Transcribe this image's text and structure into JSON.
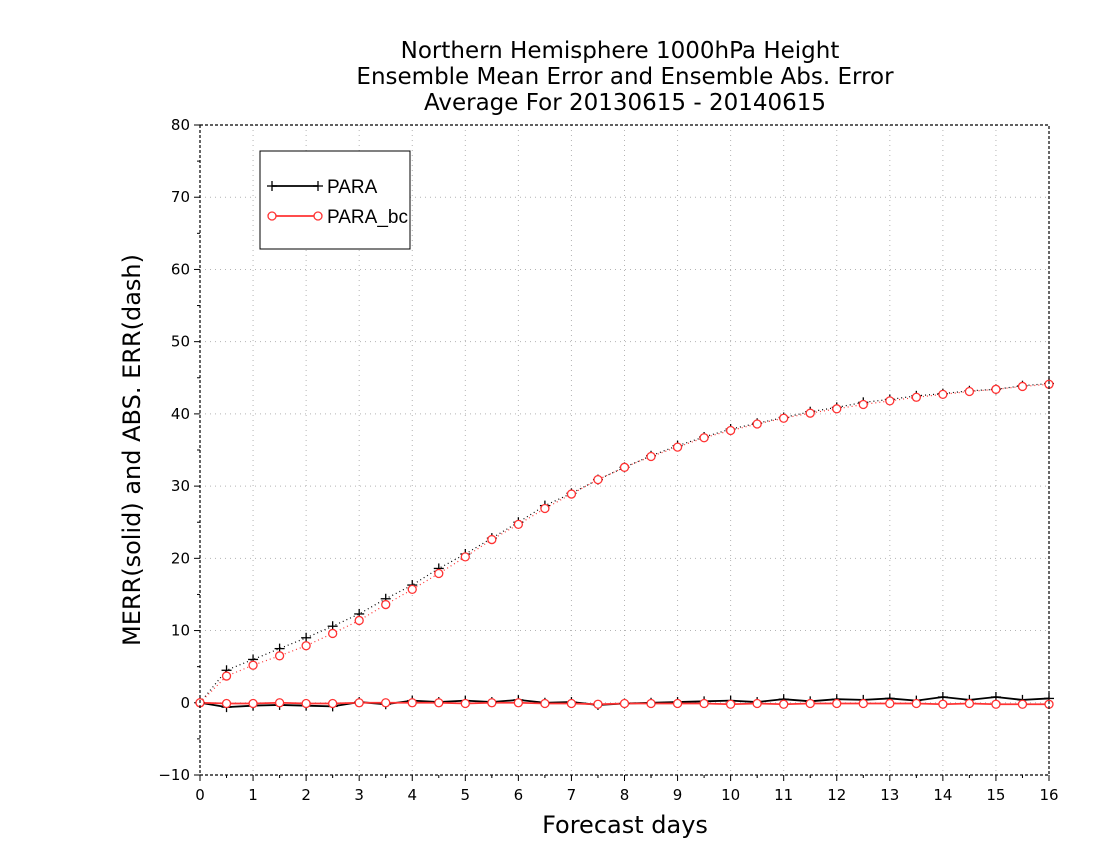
{
  "chart_data": {
    "type": "line",
    "title": [
      "Northern Hemisphere 1000hPa Height",
      "Ensemble Mean Error and Ensemble Abs. Error",
      "Average For 20130615 - 20140615"
    ],
    "xlabel": "Forecast days",
    "ylabel": "MERR(solid) and ABS. ERR(dash)",
    "xlim": [
      0,
      16
    ],
    "ylim": [
      -10,
      80
    ],
    "xticks": [
      0,
      1,
      2,
      3,
      4,
      5,
      6,
      7,
      8,
      9,
      10,
      11,
      12,
      13,
      14,
      15,
      16
    ],
    "yticks": [
      -10,
      0,
      10,
      20,
      30,
      40,
      50,
      60,
      70,
      80
    ],
    "grid": true,
    "legend_position": "top-left",
    "x": [
      0,
      0.5,
      1,
      1.5,
      2,
      2.5,
      3,
      3.5,
      4,
      4.5,
      5,
      5.5,
      6,
      6.5,
      7,
      7.5,
      8,
      8.5,
      9,
      9.5,
      10,
      10.5,
      11,
      11.5,
      12,
      12.5,
      13,
      13.5,
      14,
      14.5,
      15,
      15.5,
      16
    ],
    "series": [
      {
        "name": "PARA",
        "color": "#000000",
        "marker": "plus",
        "merr": [
          0,
          -0.6,
          -0.4,
          -0.3,
          -0.4,
          -0.5,
          0.1,
          -0.2,
          0.3,
          0.1,
          0.3,
          0.1,
          0.4,
          0.0,
          0.1,
          -0.3,
          -0.1,
          0.0,
          0.1,
          0.2,
          0.3,
          0.1,
          0.5,
          0.2,
          0.5,
          0.4,
          0.6,
          0.3,
          0.8,
          0.4,
          0.8,
          0.4,
          0.6
        ],
        "abs_err": [
          0,
          4.5,
          6.0,
          7.5,
          9.0,
          10.6,
          12.3,
          14.4,
          16.3,
          18.6,
          20.6,
          22.8,
          25.0,
          27.3,
          29.0,
          30.9,
          32.6,
          34.2,
          35.6,
          36.8,
          37.9,
          38.7,
          39.5,
          40.3,
          40.9,
          41.6,
          42.0,
          42.5,
          42.8,
          43.2,
          43.4,
          43.9,
          44.2
        ]
      },
      {
        "name": "PARA_bc",
        "color": "#ff3333",
        "marker": "circle",
        "merr": [
          0,
          -0.1,
          -0.1,
          0.0,
          -0.1,
          -0.1,
          0.0,
          0.0,
          0.0,
          0.0,
          -0.1,
          0.0,
          0.0,
          -0.1,
          -0.1,
          -0.2,
          -0.1,
          -0.1,
          -0.1,
          -0.1,
          -0.2,
          -0.1,
          -0.2,
          -0.1,
          -0.1,
          -0.1,
          -0.1,
          -0.1,
          -0.2,
          -0.1,
          -0.2,
          -0.2,
          -0.2
        ],
        "abs_err": [
          0,
          3.7,
          5.2,
          6.5,
          7.9,
          9.6,
          11.4,
          13.6,
          15.7,
          17.9,
          20.2,
          22.6,
          24.7,
          26.9,
          28.9,
          30.9,
          32.6,
          34.1,
          35.4,
          36.7,
          37.7,
          38.6,
          39.4,
          40.1,
          40.7,
          41.3,
          41.8,
          42.3,
          42.7,
          43.1,
          43.4,
          43.8,
          44.1
        ]
      }
    ]
  }
}
